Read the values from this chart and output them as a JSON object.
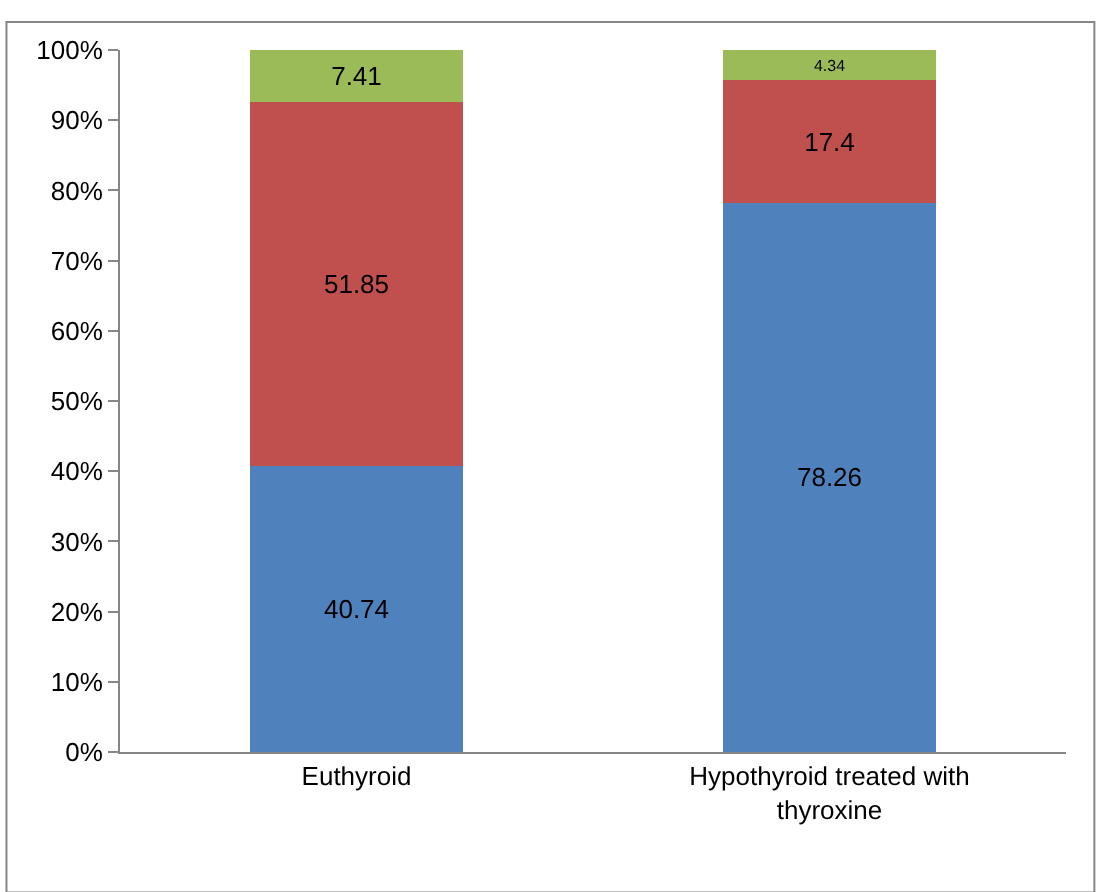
{
  "chart_data": {
    "type": "bar",
    "stacked": true,
    "categories": [
      "Euthyroid",
      "Hypothyroid treated with thyroxine"
    ],
    "series": [
      {
        "color": "#4f81bd",
        "values": [
          40.74,
          78.26
        ]
      },
      {
        "color": "#c0504d",
        "values": [
          51.85,
          17.4
        ]
      },
      {
        "color": "#9bbb59",
        "values": [
          7.41,
          4.34
        ]
      }
    ],
    "ylim": [
      0,
      100
    ],
    "yticks": [
      {
        "value": 0,
        "label": "0%"
      },
      {
        "value": 10,
        "label": "10%"
      },
      {
        "value": 20,
        "label": "20%"
      },
      {
        "value": 30,
        "label": "30%"
      },
      {
        "value": 40,
        "label": "40%"
      },
      {
        "value": 50,
        "label": "50%"
      },
      {
        "value": 60,
        "label": "60%"
      },
      {
        "value": 70,
        "label": "70%"
      },
      {
        "value": 80,
        "label": "80%"
      },
      {
        "value": 90,
        "label": "90%"
      },
      {
        "value": 100,
        "label": "100%"
      }
    ],
    "data_labels": true,
    "grid": false,
    "legend": false
  }
}
